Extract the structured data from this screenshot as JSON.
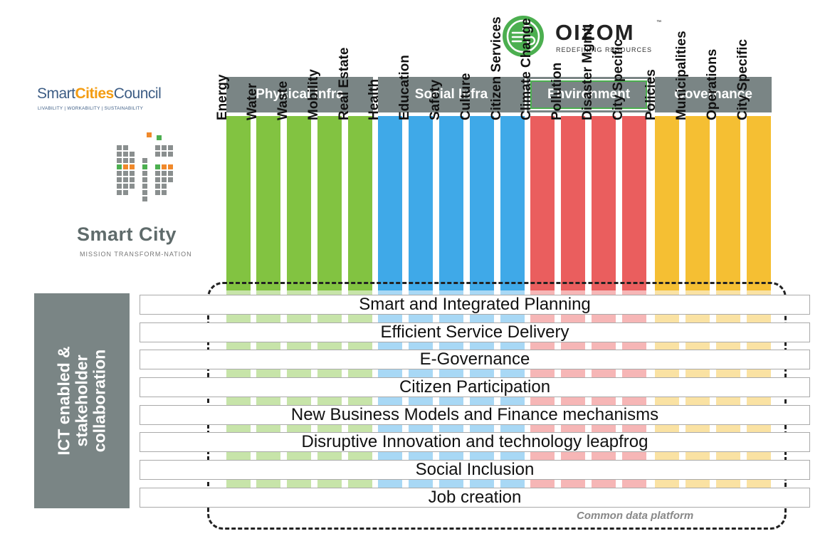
{
  "oizom": {
    "name": "OIZOM",
    "tm": "™",
    "tagline": "REDEFINING RESOURCES",
    "brand_color": "#4caf50"
  },
  "scc": {
    "name_a": "Smart",
    "name_b": "Cities",
    "name_c": "Council",
    "tagline": "LIVABILITY | WORKABILITY | SUSTAINABILITY"
  },
  "mission": {
    "title_a": "Smart C",
    "title_i": "i",
    "title_b": "ty",
    "subtitle": "MISSION TRANSFORM-NATION"
  },
  "categories": [
    {
      "label": "Physical Infra",
      "color": "#82c341",
      "items": [
        "Energy",
        "Water",
        "Waste",
        "Mobility",
        "Real Estate"
      ]
    },
    {
      "label": "Social Infra",
      "color": "#3fa9e8",
      "items": [
        "Health",
        "Education",
        "Safety",
        "Culture",
        "Citizen Services"
      ]
    },
    {
      "label": "Environment",
      "color": "#ea5e5e",
      "items": [
        "Climate Change",
        "Pollution",
        "Disaster Mgmt.",
        "City Specific"
      ]
    },
    {
      "label": "Governance",
      "color": "#f5bf33",
      "items": [
        "Policies",
        "Municipalities",
        "Operations",
        "City Specific"
      ]
    }
  ],
  "rows": [
    "Smart and Integrated Planning",
    "Efficient Service Delivery",
    "E-Governance",
    "Citizen Participation",
    "New Business Models and Finance mechanisms",
    "Disruptive Innovation and technology leapfrog",
    "Social Inclusion",
    "Job creation"
  ],
  "platform_label": "Common data platform",
  "ict": {
    "line1": "ICT enabled &",
    "line2": "stakeholder",
    "line3": "collaboration"
  }
}
